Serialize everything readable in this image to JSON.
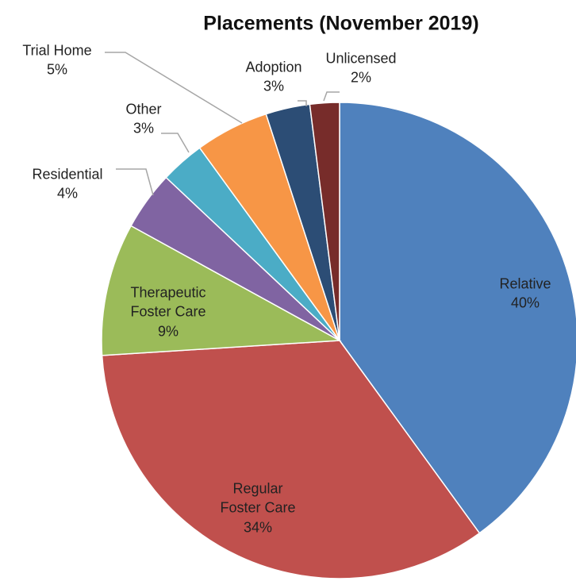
{
  "chart_data": {
    "type": "pie",
    "title": "Placements (November 2019)",
    "categories": [
      "Relative",
      "Regular Foster Care",
      "Therapeutic Foster Care",
      "Residential",
      "Other",
      "Trial Home",
      "Adoption",
      "Unlicensed"
    ],
    "values": [
      40,
      34,
      9,
      4,
      3,
      5,
      3,
      2
    ],
    "value_labels": [
      "40%",
      "34%",
      "9%",
      "4%",
      "3%",
      "5%",
      "3%",
      "2%"
    ],
    "colors": [
      "#4f81bd",
      "#c0504d",
      "#9bbb59",
      "#8064a2",
      "#4bacc6",
      "#f79646",
      "#2c4d75",
      "#772c2a"
    ]
  }
}
